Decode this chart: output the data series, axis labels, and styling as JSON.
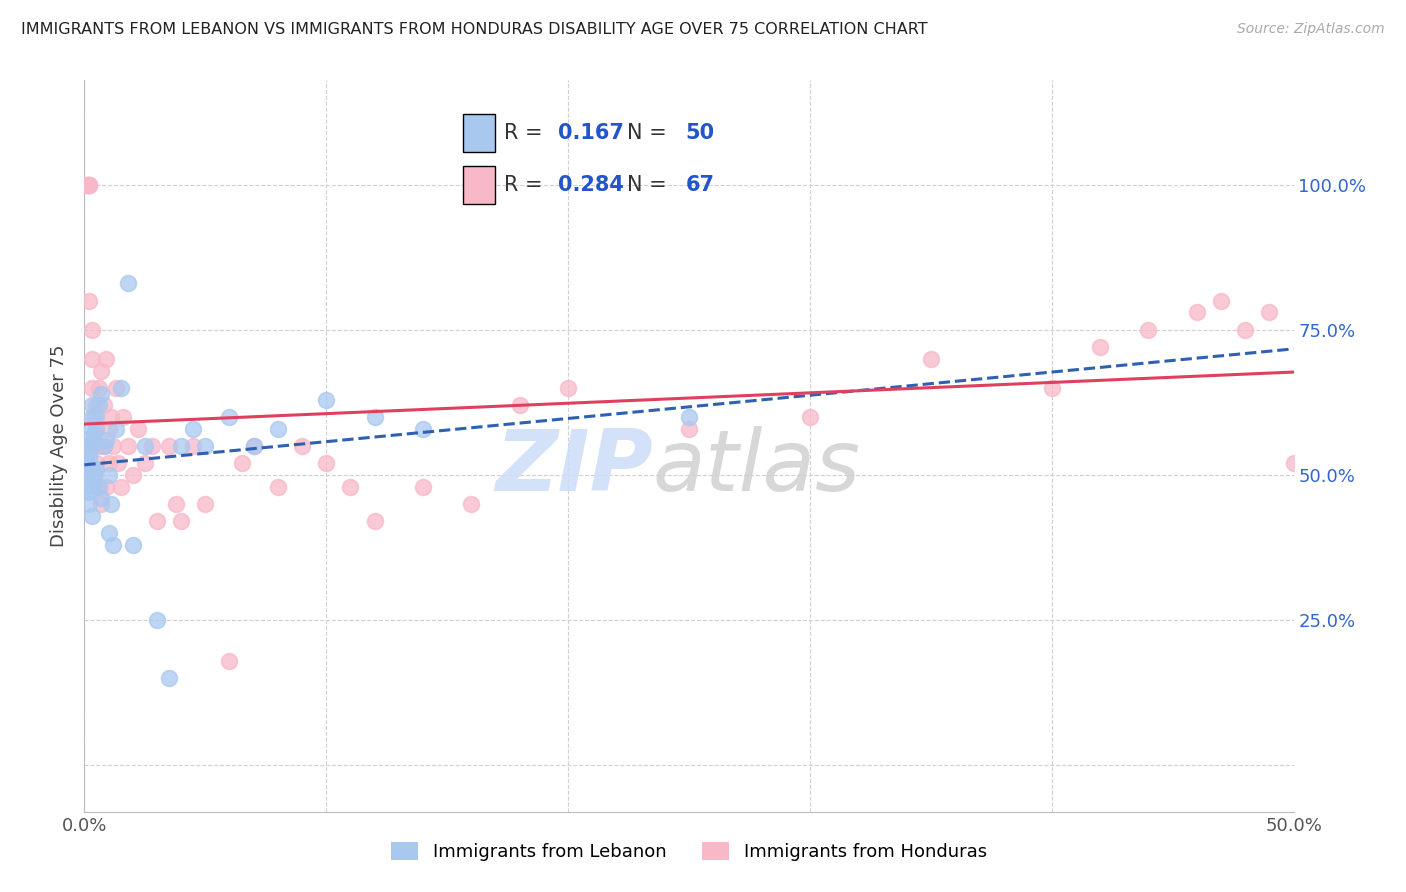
{
  "title": "IMMIGRANTS FROM LEBANON VS IMMIGRANTS FROM HONDURAS DISABILITY AGE OVER 75 CORRELATION CHART",
  "source": "Source: ZipAtlas.com",
  "ylabel": "Disability Age Over 75",
  "xlim": [
    0.0,
    0.5
  ],
  "ylim": [
    -0.08,
    1.18
  ],
  "ytick_vals": [
    0.0,
    0.25,
    0.5,
    0.75,
    1.0
  ],
  "xtick_vals": [
    0.0,
    0.1,
    0.2,
    0.3,
    0.4,
    0.5
  ],
  "xtick_labels": [
    "0.0%",
    "",
    "",
    "",
    "",
    "50.0%"
  ],
  "legend_blue_R": "0.167",
  "legend_blue_N": "50",
  "legend_pink_R": "0.284",
  "legend_pink_N": "67",
  "blue_scatter_color": "#a8c8f0",
  "pink_scatter_color": "#f8b8c8",
  "blue_line_color": "#3060b0",
  "pink_line_color": "#e04060",
  "tick_label_color": "#3366cc",
  "watermark_zip_color": "#ccddf8",
  "watermark_atlas_color": "#d0d0d0",
  "lebanon_x": [
    0.001,
    0.001,
    0.001,
    0.001,
    0.002,
    0.002,
    0.002,
    0.002,
    0.002,
    0.002,
    0.003,
    0.003,
    0.003,
    0.003,
    0.003,
    0.003,
    0.004,
    0.004,
    0.004,
    0.004,
    0.005,
    0.005,
    0.005,
    0.006,
    0.006,
    0.007,
    0.007,
    0.008,
    0.009,
    0.01,
    0.01,
    0.011,
    0.012,
    0.013,
    0.015,
    0.018,
    0.02,
    0.025,
    0.03,
    0.035,
    0.04,
    0.045,
    0.05,
    0.06,
    0.07,
    0.08,
    0.1,
    0.12,
    0.14,
    0.25
  ],
  "lebanon_y": [
    0.5,
    0.52,
    0.48,
    0.55,
    0.47,
    0.53,
    0.5,
    0.56,
    0.45,
    0.54,
    0.49,
    0.58,
    0.43,
    0.6,
    0.51,
    0.62,
    0.48,
    0.57,
    0.56,
    0.5,
    0.58,
    0.6,
    0.51,
    0.62,
    0.48,
    0.64,
    0.46,
    0.55,
    0.56,
    0.5,
    0.4,
    0.45,
    0.38,
    0.58,
    0.65,
    0.83,
    0.38,
    0.55,
    0.25,
    0.15,
    0.55,
    0.58,
    0.55,
    0.6,
    0.55,
    0.58,
    0.63,
    0.6,
    0.58,
    0.6
  ],
  "honduras_x": [
    0.001,
    0.001,
    0.002,
    0.002,
    0.002,
    0.002,
    0.003,
    0.003,
    0.003,
    0.003,
    0.004,
    0.004,
    0.004,
    0.005,
    0.005,
    0.005,
    0.006,
    0.006,
    0.006,
    0.007,
    0.007,
    0.008,
    0.008,
    0.009,
    0.009,
    0.01,
    0.01,
    0.011,
    0.012,
    0.013,
    0.014,
    0.015,
    0.016,
    0.018,
    0.02,
    0.022,
    0.025,
    0.028,
    0.03,
    0.035,
    0.038,
    0.04,
    0.045,
    0.05,
    0.06,
    0.065,
    0.07,
    0.08,
    0.09,
    0.1,
    0.11,
    0.12,
    0.14,
    0.16,
    0.18,
    0.2,
    0.25,
    0.3,
    0.35,
    0.4,
    0.42,
    0.44,
    0.46,
    0.47,
    0.48,
    0.49,
    0.5
  ],
  "honduras_y": [
    1.0,
    1.0,
    1.0,
    1.0,
    1.0,
    0.8,
    0.75,
    0.7,
    0.65,
    0.55,
    0.6,
    0.55,
    0.5,
    0.62,
    0.58,
    0.52,
    0.65,
    0.55,
    0.48,
    0.68,
    0.45,
    0.62,
    0.55,
    0.7,
    0.48,
    0.58,
    0.52,
    0.6,
    0.55,
    0.65,
    0.52,
    0.48,
    0.6,
    0.55,
    0.5,
    0.58,
    0.52,
    0.55,
    0.42,
    0.55,
    0.45,
    0.42,
    0.55,
    0.45,
    0.18,
    0.52,
    0.55,
    0.48,
    0.55,
    0.52,
    0.48,
    0.42,
    0.48,
    0.45,
    0.62,
    0.65,
    0.58,
    0.6,
    0.7,
    0.65,
    0.72,
    0.75,
    0.78,
    0.8,
    0.75,
    0.78,
    0.52
  ]
}
